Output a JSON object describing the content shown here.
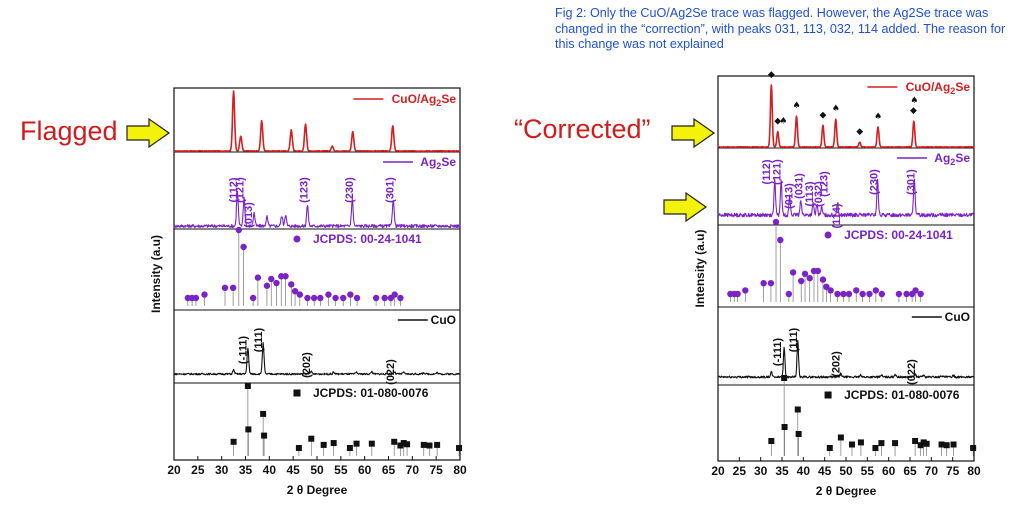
{
  "caption": "Fig 2: Only the CuO/Ag2Se trace was flagged. However, the Ag2Se trace was changed in the “correction”, with peaks 031, 113, 032, 114 added. The reason for this change was not explained",
  "labels": {
    "flagged": "Flagged",
    "corrected": "“Corrected”"
  },
  "colors": {
    "red": "#d42020",
    "purple": "#7a24c8",
    "black": "#111111",
    "arrow": "#f2f20a",
    "caption": "#1f4fd8"
  },
  "chart_data": [
    {
      "type": "line",
      "panel": "flagged",
      "xlabel": "2 θ Degree",
      "ylabel": "Intensity (a.u)",
      "xlim": [
        20,
        80
      ],
      "xticks": [
        20,
        25,
        30,
        35,
        40,
        45,
        50,
        55,
        60,
        65,
        70,
        75,
        80
      ],
      "series": [
        {
          "name": "CuO/Ag2Se",
          "legend": "CuO/Ag",
          "legend_sub": "2",
          "legend_tail": "Se",
          "color": "red",
          "peaks": [
            [
              32.5,
              1.0
            ],
            [
              34.0,
              0.25
            ],
            [
              38.4,
              0.5
            ],
            [
              44.6,
              0.35
            ],
            [
              47.6,
              0.45
            ],
            [
              53.2,
              0.08
            ],
            [
              57.5,
              0.32
            ],
            [
              65.9,
              0.42
            ]
          ],
          "markers": []
        },
        {
          "name": "Ag2Se",
          "legend": "Ag",
          "legend_sub": "2",
          "legend_tail": "Se",
          "color": "purple",
          "peaks": [
            [
              33.3,
              0.65
            ],
            [
              34.7,
              0.55
            ],
            [
              36.8,
              0.25
            ],
            [
              39.5,
              0.18
            ],
            [
              42.6,
              0.2
            ],
            [
              43.4,
              0.22
            ],
            [
              48.0,
              0.4
            ],
            [
              57.4,
              0.5
            ],
            [
              66.0,
              0.52
            ]
          ],
          "annotations": [
            "(112)",
            "(121)",
            "(013)",
            "(123)",
            "(230)",
            "(301)"
          ]
        },
        {
          "name": "JCPDS: 00-24-1041",
          "legend": "JCPDS: 00-24-1041",
          "color": "purple",
          "sticks": [
            [
              22.9,
              0.0
            ],
            [
              23.8,
              0.0
            ],
            [
              24.6,
              0.0
            ],
            [
              26.4,
              0.05
            ],
            [
              30.7,
              0.15
            ],
            [
              32.4,
              0.15
            ],
            [
              33.6,
              1.0
            ],
            [
              34.6,
              0.75
            ],
            [
              36.6,
              0.0
            ],
            [
              37.6,
              0.3
            ],
            [
              39.5,
              0.18
            ],
            [
              40.4,
              0.28
            ],
            [
              41.5,
              0.22
            ],
            [
              42.5,
              0.32
            ],
            [
              43.4,
              0.32
            ],
            [
              44.6,
              0.2
            ],
            [
              45.4,
              0.1
            ],
            [
              46.4,
              0.05
            ],
            [
              48.0,
              0.0
            ],
            [
              49.4,
              0.0
            ],
            [
              50.7,
              0.0
            ],
            [
              52.4,
              0.05
            ],
            [
              53.9,
              0.0
            ],
            [
              55.5,
              0.0
            ],
            [
              57.0,
              0.05
            ],
            [
              58.4,
              0.0
            ],
            [
              62.4,
              0.0
            ],
            [
              64.2,
              0.0
            ],
            [
              65.5,
              0.0
            ],
            [
              66.3,
              0.05
            ],
            [
              67.5,
              0.0
            ]
          ]
        },
        {
          "name": "CuO",
          "legend": "CuO",
          "color": "black",
          "peaks": [
            [
              32.5,
              0.12
            ],
            [
              35.5,
              0.75
            ],
            [
              38.7,
              0.9
            ],
            [
              48.7,
              0.08
            ],
            [
              53.5,
              0.05
            ],
            [
              58.3,
              0.05
            ],
            [
              61.5,
              0.07
            ],
            [
              66.2,
              0.07
            ],
            [
              68.1,
              0.05
            ],
            [
              72.4,
              0.04
            ],
            [
              75.2,
              0.04
            ]
          ],
          "annotations": [
            "(-111)",
            "(111)",
            "(202)",
            "(022)"
          ]
        },
        {
          "name": "JCPDS: 01-080-0076",
          "legend": "JCPDS: 01-080-0076",
          "color": "black",
          "sticks": [
            [
              32.5,
              0.1
            ],
            [
              35.5,
              1.0
            ],
            [
              35.6,
              0.3
            ],
            [
              38.7,
              0.55
            ],
            [
              38.9,
              0.2
            ],
            [
              46.2,
              0.0
            ],
            [
              48.8,
              0.15
            ],
            [
              51.4,
              0.05
            ],
            [
              53.5,
              0.08
            ],
            [
              56.9,
              0.0
            ],
            [
              58.3,
              0.07
            ],
            [
              61.5,
              0.07
            ],
            [
              66.2,
              0.1
            ],
            [
              67.5,
              0.04
            ],
            [
              68.2,
              0.08
            ],
            [
              68.9,
              0.06
            ],
            [
              72.4,
              0.05
            ],
            [
              73.6,
              0.04
            ],
            [
              75.2,
              0.05
            ],
            [
              79.8,
              0.0
            ]
          ]
        }
      ]
    },
    {
      "type": "line",
      "panel": "corrected",
      "xlabel": "2 θ Degree",
      "ylabel": "Intensity (a.u)",
      "xlim": [
        20,
        80
      ],
      "xticks": [
        20,
        25,
        30,
        35,
        40,
        45,
        50,
        55,
        60,
        65,
        70,
        75,
        80
      ],
      "series": [
        {
          "name": "CuO/Ag2Se",
          "legend": "CuO/Ag",
          "legend_sub": "2",
          "legend_tail": "Se",
          "color": "red",
          "peaks": [
            [
              32.5,
              1.0
            ],
            [
              34.0,
              0.25
            ],
            [
              38.4,
              0.5
            ],
            [
              44.6,
              0.35
            ],
            [
              47.6,
              0.45
            ],
            [
              53.2,
              0.08
            ],
            [
              57.5,
              0.32
            ],
            [
              65.9,
              0.42
            ]
          ],
          "markers": [
            [
              32.5,
              "diamond"
            ],
            [
              34.0,
              "diamond"
            ],
            [
              35.3,
              "spade"
            ],
            [
              38.4,
              "spade"
            ],
            [
              44.6,
              "diamond"
            ],
            [
              47.6,
              "spade"
            ],
            [
              53.2,
              "diamond"
            ],
            [
              57.5,
              "spade"
            ],
            [
              65.8,
              "diamond"
            ],
            [
              66.0,
              "spade"
            ]
          ]
        },
        {
          "name": "Ag2Se",
          "legend": "Ag",
          "legend_sub": "2",
          "legend_tail": "Se",
          "color": "purple",
          "peaks": [
            [
              33.3,
              0.55
            ],
            [
              34.8,
              0.55
            ],
            [
              36.8,
              0.3
            ],
            [
              39.4,
              0.25
            ],
            [
              42.3,
              0.18
            ],
            [
              43.2,
              0.16
            ],
            [
              44.3,
              0.12
            ],
            [
              48.0,
              0.2
            ],
            [
              57.4,
              0.55
            ],
            [
              66.0,
              0.6
            ]
          ],
          "annotations": [
            "(112)",
            "(121)",
            "(013)",
            "(031)",
            "(113)",
            "(032)",
            "(123)",
            "(114)",
            "(230)",
            "(301)"
          ]
        },
        {
          "name": "JCPDS: 00-24-1041",
          "legend": "JCPDS: 00-24-1041",
          "color": "purple",
          "sticks": [
            [
              22.9,
              0.0
            ],
            [
              23.8,
              0.0
            ],
            [
              24.6,
              0.0
            ],
            [
              26.4,
              0.05
            ],
            [
              30.7,
              0.15
            ],
            [
              32.4,
              0.15
            ],
            [
              33.6,
              1.0
            ],
            [
              34.6,
              0.75
            ],
            [
              36.6,
              0.0
            ],
            [
              37.6,
              0.3
            ],
            [
              39.5,
              0.18
            ],
            [
              40.4,
              0.28
            ],
            [
              41.5,
              0.22
            ],
            [
              42.5,
              0.32
            ],
            [
              43.4,
              0.32
            ],
            [
              44.6,
              0.2
            ],
            [
              45.4,
              0.1
            ],
            [
              46.4,
              0.05
            ],
            [
              48.0,
              0.0
            ],
            [
              49.4,
              0.0
            ],
            [
              50.7,
              0.0
            ],
            [
              52.4,
              0.05
            ],
            [
              53.9,
              0.0
            ],
            [
              55.5,
              0.0
            ],
            [
              57.0,
              0.05
            ],
            [
              58.4,
              0.0
            ],
            [
              62.4,
              0.0
            ],
            [
              64.2,
              0.0
            ],
            [
              65.5,
              0.0
            ],
            [
              66.3,
              0.05
            ],
            [
              67.5,
              0.0
            ]
          ]
        },
        {
          "name": "CuO",
          "legend": "CuO",
          "color": "black",
          "peaks": [
            [
              32.5,
              0.12
            ],
            [
              35.5,
              0.75
            ],
            [
              38.7,
              0.9
            ],
            [
              48.7,
              0.08
            ],
            [
              53.5,
              0.05
            ],
            [
              58.3,
              0.05
            ],
            [
              61.5,
              0.07
            ],
            [
              66.2,
              0.07
            ],
            [
              68.1,
              0.05
            ],
            [
              72.4,
              0.04
            ],
            [
              75.2,
              0.04
            ]
          ],
          "annotations": [
            "(-111)",
            "(111)",
            "(202)",
            "(022)"
          ]
        },
        {
          "name": "JCPDS: 01-080-0076",
          "legend": "JCPDS: 01-080-0076",
          "color": "black",
          "sticks": [
            [
              32.5,
              0.1
            ],
            [
              35.5,
              1.0
            ],
            [
              35.6,
              0.3
            ],
            [
              38.7,
              0.55
            ],
            [
              38.9,
              0.2
            ],
            [
              46.2,
              0.0
            ],
            [
              48.8,
              0.15
            ],
            [
              51.4,
              0.05
            ],
            [
              53.5,
              0.08
            ],
            [
              56.9,
              0.0
            ],
            [
              58.3,
              0.07
            ],
            [
              61.5,
              0.07
            ],
            [
              66.2,
              0.1
            ],
            [
              67.5,
              0.04
            ],
            [
              68.2,
              0.08
            ],
            [
              68.9,
              0.06
            ],
            [
              72.4,
              0.05
            ],
            [
              73.6,
              0.04
            ],
            [
              75.2,
              0.05
            ],
            [
              79.8,
              0.0
            ]
          ]
        }
      ]
    }
  ]
}
